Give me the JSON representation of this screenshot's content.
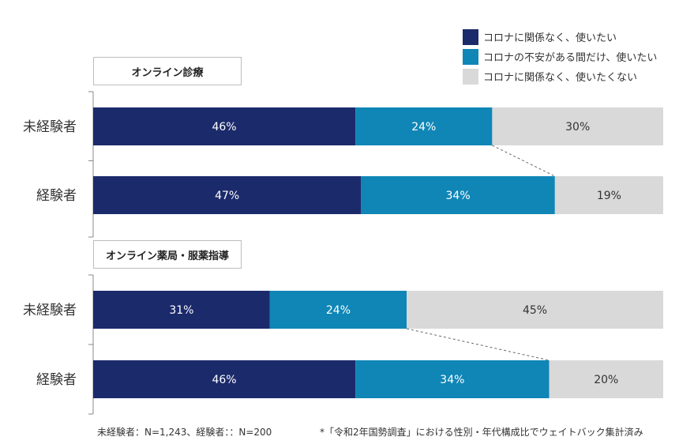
{
  "colors": {
    "series_1": "#1b2a6b",
    "series_2": "#0f86b6",
    "series_3": "#d9d9d9"
  },
  "legend": [
    "コロナに関係なく、使いたい",
    "コロナの不安がある間だけ、使いたい",
    "コロナに関係なく、使いたくない"
  ],
  "chart_data": {
    "type": "bar",
    "orientation": "horizontal",
    "stacked": true,
    "percent": true,
    "series": [
      {
        "name": "コロナに関係なく、使いたい"
      },
      {
        "name": "コロナの不安がある間だけ、使いたい"
      },
      {
        "name": "コロナに関係なく、使いたくない"
      }
    ],
    "groups": [
      {
        "title": "オンライン診療",
        "rows": [
          {
            "label": "未経験者",
            "values": [
              46,
              24,
              30
            ]
          },
          {
            "label": "経験者",
            "values": [
              47,
              34,
              19
            ]
          }
        ]
      },
      {
        "title": "オンライン薬局・服薬指導",
        "rows": [
          {
            "label": "未経験者",
            "values": [
              31,
              24,
              45
            ]
          },
          {
            "label": "経験者",
            "values": [
              46,
              34,
              20
            ]
          }
        ]
      }
    ],
    "value_suffix": "%",
    "xlim": [
      0,
      100
    ]
  },
  "footnotes": {
    "left": "未経験者：N=1,243、経験者：：N=200",
    "right": "*「令和2年国勢調査」における性別・年代構成比でウェイトバック集計済み"
  }
}
